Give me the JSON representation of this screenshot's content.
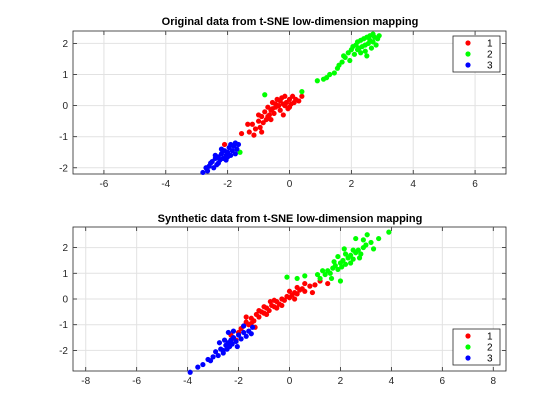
{
  "chart_data": [
    {
      "type": "scatter",
      "title": "Original data from t-SNE low-dimension mapping",
      "xlabel": "",
      "ylabel": "",
      "xlim": [
        -7,
        7
      ],
      "ylim": [
        -2.2,
        2.4
      ],
      "xticks": [
        -6,
        -4,
        -2,
        0,
        2,
        4,
        6
      ],
      "yticks": [
        -2,
        -1,
        0,
        1,
        2
      ],
      "xtick_labels": [
        "-6",
        "-4",
        "-2",
        "0",
        "2",
        "4",
        "6"
      ],
      "ytick_labels": [
        "-2",
        "-1",
        "0",
        "1",
        "2"
      ],
      "grid": true,
      "legend_position": "top-right",
      "series": [
        {
          "name": "1",
          "color": "#ff0000",
          "points": [
            [
              -1.3,
              -0.85
            ],
            [
              -1.2,
              -0.6
            ],
            [
              -1.1,
              -0.75
            ],
            [
              -1.0,
              -0.5
            ],
            [
              -0.95,
              -0.7
            ],
            [
              -0.9,
              -0.35
            ],
            [
              -0.85,
              -0.55
            ],
            [
              -0.8,
              -0.2
            ],
            [
              -0.75,
              -0.45
            ],
            [
              -0.7,
              -0.05
            ],
            [
              -0.65,
              -0.3
            ],
            [
              -0.6,
              -0.15
            ],
            [
              -0.55,
              0.1
            ],
            [
              -0.5,
              -0.25
            ],
            [
              -0.45,
              -0.05
            ],
            [
              -0.4,
              0.2
            ],
            [
              -0.35,
              0.0
            ],
            [
              -0.3,
              -0.15
            ],
            [
              -0.25,
              0.25
            ],
            [
              -0.2,
              0.05
            ],
            [
              -0.15,
              0.3
            ],
            [
              -0.1,
              0.1
            ],
            [
              -0.05,
              -0.1
            ],
            [
              0.0,
              0.2
            ],
            [
              0.05,
              0.05
            ],
            [
              0.1,
              0.3
            ],
            [
              0.15,
              0.1
            ],
            [
              0.2,
              0.2
            ],
            [
              0.3,
              0.15
            ],
            [
              0.4,
              0.3
            ],
            [
              -1.55,
              -0.9
            ],
            [
              -1.35,
              -0.6
            ],
            [
              -1.0,
              -0.3
            ],
            [
              -0.2,
              -0.3
            ],
            [
              -0.6,
              -0.45
            ],
            [
              -0.3,
              0.15
            ],
            [
              0.0,
              -0.05
            ],
            [
              -0.9,
              -0.85
            ],
            [
              -0.7,
              -0.35
            ],
            [
              -0.45,
              0.05
            ],
            [
              -2.1,
              -1.25
            ],
            [
              -0.15,
              0.0
            ],
            [
              -0.55,
              -0.1
            ],
            [
              -1.15,
              -0.95
            ]
          ]
        },
        {
          "name": "2",
          "color": "#00ff00",
          "points": [
            [
              0.9,
              0.8
            ],
            [
              1.1,
              0.85
            ],
            [
              1.3,
              1.0
            ],
            [
              1.45,
              1.05
            ],
            [
              1.6,
              1.3
            ],
            [
              1.7,
              1.4
            ],
            [
              1.75,
              1.6
            ],
            [
              1.8,
              1.55
            ],
            [
              1.9,
              1.7
            ],
            [
              1.95,
              1.45
            ],
            [
              2.0,
              1.8
            ],
            [
              2.05,
              1.9
            ],
            [
              2.1,
              1.65
            ],
            [
              2.15,
              1.95
            ],
            [
              2.2,
              2.05
            ],
            [
              2.25,
              1.85
            ],
            [
              2.3,
              2.1
            ],
            [
              2.35,
              1.9
            ],
            [
              2.4,
              2.15
            ],
            [
              2.45,
              1.75
            ],
            [
              2.5,
              2.2
            ],
            [
              2.55,
              2.0
            ],
            [
              2.6,
              2.25
            ],
            [
              2.65,
              1.85
            ],
            [
              2.7,
              2.05
            ],
            [
              2.75,
              2.2
            ],
            [
              2.8,
              1.95
            ],
            [
              2.85,
              2.15
            ],
            [
              2.9,
              2.25
            ],
            [
              2.5,
              1.6
            ],
            [
              2.3,
              1.7
            ],
            [
              2.45,
              1.95
            ],
            [
              2.2,
              1.8
            ],
            [
              2.6,
              2.1
            ],
            [
              2.7,
              2.3
            ],
            [
              0.4,
              0.45
            ],
            [
              -0.8,
              0.35
            ],
            [
              -1.6,
              -1.5
            ],
            [
              1.2,
              0.9
            ],
            [
              1.55,
              1.2
            ]
          ]
        },
        {
          "name": "3",
          "color": "#0000ff",
          "points": [
            [
              -2.8,
              -2.15
            ],
            [
              -2.7,
              -2.0
            ],
            [
              -2.6,
              -1.95
            ],
            [
              -2.5,
              -1.8
            ],
            [
              -2.45,
              -2.0
            ],
            [
              -2.4,
              -1.7
            ],
            [
              -2.35,
              -1.9
            ],
            [
              -2.3,
              -1.65
            ],
            [
              -2.25,
              -1.75
            ],
            [
              -2.2,
              -1.55
            ],
            [
              -2.15,
              -1.7
            ],
            [
              -2.1,
              -1.45
            ],
            [
              -2.05,
              -1.6
            ],
            [
              -2.0,
              -1.5
            ],
            [
              -1.95,
              -1.35
            ],
            [
              -1.9,
              -1.6
            ],
            [
              -1.85,
              -1.45
            ],
            [
              -1.8,
              -1.3
            ],
            [
              -1.75,
              -1.55
            ],
            [
              -1.7,
              -1.4
            ],
            [
              -1.65,
              -1.25
            ],
            [
              -2.55,
              -1.85
            ],
            [
              -2.65,
              -2.1
            ],
            [
              -2.3,
              -1.85
            ],
            [
              -2.05,
              -1.75
            ],
            [
              -1.9,
              -1.25
            ],
            [
              -2.4,
              -1.6
            ],
            [
              -2.2,
              -1.4
            ],
            [
              -1.75,
              -1.2
            ],
            [
              -2.0,
              -1.65
            ]
          ]
        }
      ]
    },
    {
      "type": "scatter",
      "title": "Synthetic data from t-SNE low-dimension mapping",
      "xlabel": "",
      "ylabel": "",
      "xlim": [
        -8.5,
        8.5
      ],
      "ylim": [
        -2.8,
        2.8
      ],
      "xticks": [
        -8,
        -6,
        -4,
        -2,
        0,
        2,
        4,
        6,
        8
      ],
      "yticks": [
        -2,
        -1,
        0,
        1,
        2
      ],
      "xtick_labels": [
        "-8",
        "-6",
        "-4",
        "-2",
        "0",
        "2",
        "4",
        "6",
        "8"
      ],
      "ytick_labels": [
        "-2",
        "-1",
        "0",
        "1",
        "2"
      ],
      "grid": true,
      "legend_position": "bottom-right",
      "series": [
        {
          "name": "1",
          "color": "#ff0000",
          "points": [
            [
              -2.0,
              -1.3
            ],
            [
              -1.9,
              -1.15
            ],
            [
              -1.8,
              -1.05
            ],
            [
              -1.7,
              -0.9
            ],
            [
              -1.6,
              -1.0
            ],
            [
              -1.5,
              -0.75
            ],
            [
              -1.4,
              -0.85
            ],
            [
              -1.3,
              -0.6
            ],
            [
              -1.2,
              -0.7
            ],
            [
              -1.1,
              -0.5
            ],
            [
              -1.0,
              -0.55
            ],
            [
              -0.9,
              -0.35
            ],
            [
              -0.8,
              -0.45
            ],
            [
              -0.7,
              -0.25
            ],
            [
              -0.6,
              -0.3
            ],
            [
              -0.5,
              -0.1
            ],
            [
              -0.4,
              -0.2
            ],
            [
              -0.3,
              0.0
            ],
            [
              -0.2,
              -0.05
            ],
            [
              -0.1,
              0.1
            ],
            [
              0.0,
              0.05
            ],
            [
              0.1,
              0.15
            ],
            [
              0.2,
              0.25
            ],
            [
              0.3,
              0.2
            ],
            [
              0.4,
              0.35
            ],
            [
              0.5,
              0.4
            ],
            [
              0.6,
              0.3
            ],
            [
              0.8,
              0.5
            ],
            [
              1.0,
              0.55
            ],
            [
              1.2,
              0.7
            ],
            [
              -1.5,
              -0.95
            ],
            [
              -1.2,
              -0.45
            ],
            [
              -0.9,
              -0.6
            ],
            [
              -0.6,
              -0.05
            ],
            [
              -0.3,
              -0.25
            ],
            [
              0.0,
              0.3
            ],
            [
              0.3,
              0.45
            ],
            [
              -1.7,
              -0.7
            ],
            [
              -1.0,
              -0.3
            ],
            [
              -0.5,
              -0.35
            ],
            [
              0.2,
              0.0
            ],
            [
              -2.1,
              -1.6
            ],
            [
              0.9,
              0.25
            ],
            [
              -1.35,
              -1.1
            ],
            [
              -0.75,
              -0.1
            ],
            [
              0.6,
              0.6
            ],
            [
              1.5,
              0.6
            ],
            [
              -2.3,
              -1.4
            ]
          ]
        },
        {
          "name": "2",
          "color": "#00ff00",
          "points": [
            [
              1.2,
              0.8
            ],
            [
              1.4,
              0.95
            ],
            [
              1.5,
              1.1
            ],
            [
              1.6,
              1.0
            ],
            [
              1.7,
              1.2
            ],
            [
              1.8,
              1.3
            ],
            [
              1.9,
              1.15
            ],
            [
              2.0,
              1.4
            ],
            [
              2.1,
              1.5
            ],
            [
              2.2,
              1.35
            ],
            [
              2.3,
              1.6
            ],
            [
              2.4,
              1.7
            ],
            [
              2.5,
              1.55
            ],
            [
              2.6,
              1.8
            ],
            [
              2.7,
              1.9
            ],
            [
              2.8,
              1.75
            ],
            [
              2.9,
              2.0
            ],
            [
              3.0,
              2.1
            ],
            [
              3.2,
              2.2
            ],
            [
              3.5,
              2.35
            ],
            [
              3.9,
              2.6
            ],
            [
              3.05,
              2.5
            ],
            [
              2.6,
              2.35
            ],
            [
              1.9,
              1.65
            ],
            [
              2.2,
              1.75
            ],
            [
              2.4,
              1.4
            ],
            [
              1.65,
              0.8
            ],
            [
              2.05,
              1.25
            ],
            [
              2.75,
              1.6
            ],
            [
              3.3,
              1.95
            ],
            [
              1.3,
              1.1
            ],
            [
              0.6,
              0.9
            ],
            [
              0.3,
              0.8
            ],
            [
              -0.1,
              0.85
            ],
            [
              2.0,
              0.7
            ],
            [
              2.5,
              1.9
            ],
            [
              1.75,
              1.45
            ],
            [
              2.15,
              1.95
            ],
            [
              2.9,
              2.3
            ],
            [
              1.1,
              0.95
            ]
          ]
        },
        {
          "name": "3",
          "color": "#0000ff",
          "points": [
            [
              -3.9,
              -2.85
            ],
            [
              -3.6,
              -2.65
            ],
            [
              -3.4,
              -2.55
            ],
            [
              -3.2,
              -2.35
            ],
            [
              -3.0,
              -2.25
            ],
            [
              -2.9,
              -2.05
            ],
            [
              -2.8,
              -2.2
            ],
            [
              -2.7,
              -1.95
            ],
            [
              -2.6,
              -2.1
            ],
            [
              -2.5,
              -1.8
            ],
            [
              -2.45,
              -1.95
            ],
            [
              -2.4,
              -1.7
            ],
            [
              -2.35,
              -1.85
            ],
            [
              -2.3,
              -1.6
            ],
            [
              -2.25,
              -1.75
            ],
            [
              -2.2,
              -1.5
            ],
            [
              -2.1,
              -1.65
            ],
            [
              -2.0,
              -1.4
            ],
            [
              -1.9,
              -1.55
            ],
            [
              -1.8,
              -1.3
            ],
            [
              -1.7,
              -1.45
            ],
            [
              -1.6,
              -1.25
            ],
            [
              -1.5,
              -1.35
            ],
            [
              -2.4,
              -1.3
            ],
            [
              -2.2,
              -1.25
            ],
            [
              -1.8,
              -1.05
            ],
            [
              -2.6,
              -2.0
            ],
            [
              -3.1,
              -2.4
            ],
            [
              -2.55,
              -1.6
            ],
            [
              -2.05,
              -1.85
            ],
            [
              -1.45,
              -1.1
            ],
            [
              -2.75,
              -1.7
            ]
          ]
        }
      ]
    }
  ]
}
